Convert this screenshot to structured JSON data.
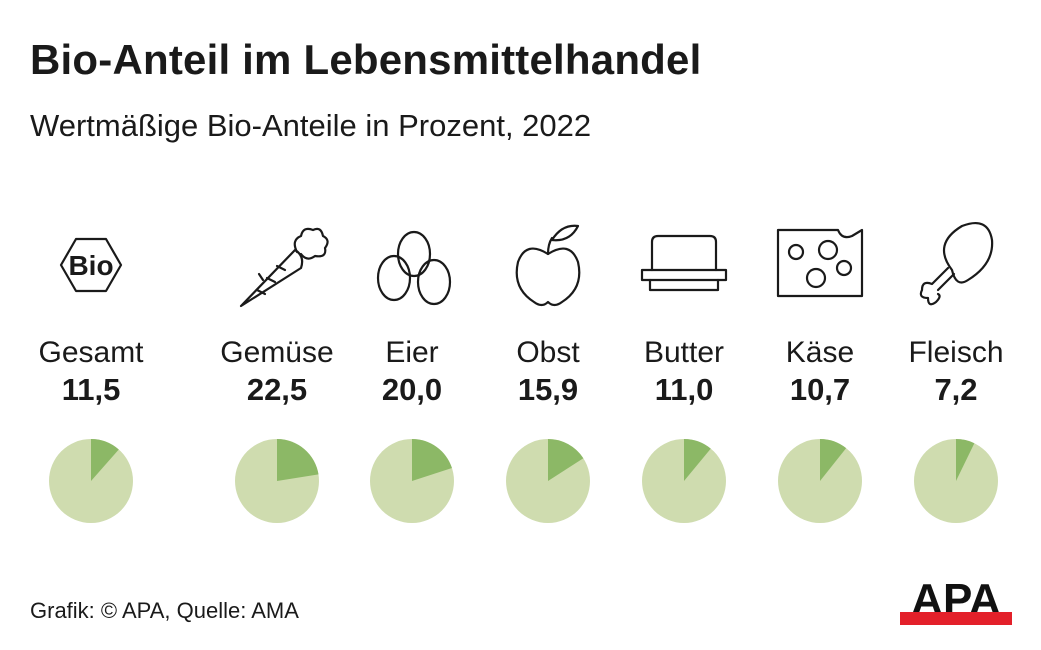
{
  "header": {
    "title": "Bio-Anteil im Lebensmittelhandel",
    "subtitle": "Wertmäßige Bio-Anteile in Prozent, 2022"
  },
  "chart_data": {
    "type": "pie",
    "title": "Bio-Anteil im Lebensmittelhandel",
    "subtitle": "Wertmäßige Bio-Anteile in Prozent, 2022",
    "unit": "Prozent",
    "categories": [
      "Gesamt",
      "Gemüse",
      "Eier",
      "Obst",
      "Butter",
      "Käse",
      "Fleisch"
    ],
    "values": [
      11.5,
      22.5,
      20.0,
      15.9,
      11.0,
      10.7,
      7.2
    ],
    "value_labels": [
      "11,5",
      "22,5",
      "20,0",
      "15,9",
      "11,0",
      "10,7",
      "7,2"
    ],
    "icons": [
      "bio-hexagon-icon",
      "carrot-icon",
      "eggs-icon",
      "apple-icon",
      "butter-dish-icon",
      "cheese-icon",
      "chicken-leg-icon"
    ],
    "colors": {
      "share": "#8cb866",
      "rest": "#cfdcaf"
    }
  },
  "footer": {
    "source": "Grafik: © APA, Quelle: AMA",
    "logo_text": "APA",
    "bio_badge": "Bio"
  }
}
